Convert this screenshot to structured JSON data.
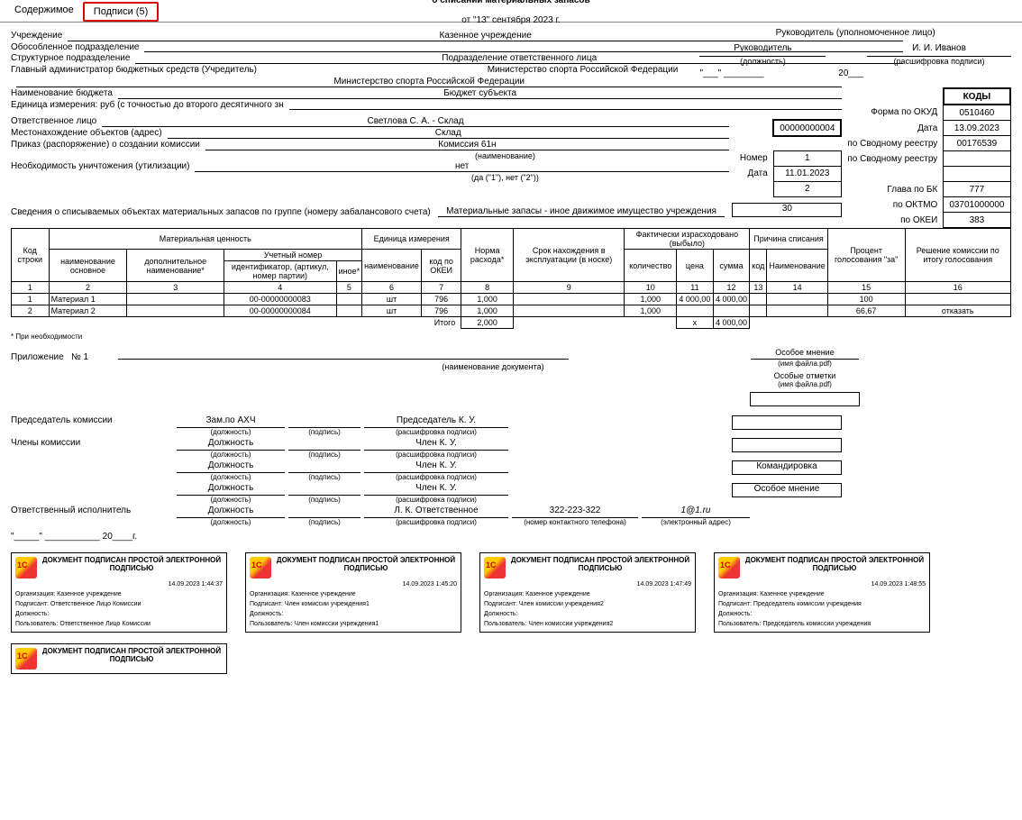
{
  "tabs": {
    "content": "Содержимое",
    "signatures": "Подписи (5)"
  },
  "header": {
    "lead": "Руководитель (уполномоченное лицо)",
    "position": "Руководитель",
    "position_sub": "(должность)",
    "name": "И. И. Иванов",
    "name_sub": "(расшифровка подписи)",
    "date_prefix": "\"___\"",
    "date_mid": "________",
    "date_year": "20___"
  },
  "act": {
    "title_prefix": "АКТ №",
    "number": "0000-000004",
    "subtitle": "о списании материальных запасов",
    "date_line": "от \"13\" сентября 2023 г."
  },
  "codes": {
    "header": "КОДЫ",
    "rows": [
      {
        "lbl": "Форма по ОКУД",
        "val": "0510460"
      },
      {
        "lbl": "Дата",
        "val": "13.09.2023"
      },
      {
        "lbl": "по Сводному реестру",
        "val": "00176539"
      },
      {
        "lbl": "по Сводному реестру",
        "val": ""
      },
      {
        "lbl": "",
        "val": ""
      },
      {
        "lbl": "Глава по БК",
        "val": "777"
      },
      {
        "lbl": "по ОКТМО",
        "val": "03701000000"
      },
      {
        "lbl": "по ОКЕИ",
        "val": "383"
      }
    ],
    "resp_code": "00000000004",
    "order_num_lbl": "Номер",
    "order_num": "1",
    "order_date_lbl": "Дата",
    "order_date": "11.01.2023",
    "destroy_code": "2",
    "group_code": "30"
  },
  "fields": {
    "org_lbl": "Учреждение",
    "org": "Казенное учреждение",
    "dep_lbl": "Обособленное подразделение",
    "dep": "",
    "struct_lbl": "Структурное подразделение",
    "struct": "Подразделение ответственного лица",
    "admin_lbl": "Главный администратор бюджетных средств (Учредитель)",
    "admin": "Министерство спорта Российской Федерации",
    "budget_lbl": "Наименование бюджета",
    "budget": "Бюджет субъекта",
    "unit_lbl": "Единица измерения: руб (с точностью до второго десятичного зн",
    "resp_lbl": "Ответственное лицо",
    "resp": "Светлова С. А. - Склад",
    "loc_lbl": "Местонахождение объектов (адрес)",
    "loc": "Склад",
    "order_lbl": "Приказ (распоряжение) о создании комиссии",
    "order": "Комиссия 61н",
    "order_sub": "(наименование)",
    "destroy_lbl": "Необходимость уничтожения (утилизации)",
    "destroy": "нет",
    "destroy_sub": "(да (\"1\"), нет (\"2\"))",
    "group_lbl": "Сведения о списываемых объектах материальных запасов по группе (номеру забалансового счета)",
    "group_val": "Материальные запасы - иное движимое имущество учреждения"
  },
  "table": {
    "h": {
      "kod": "Код строки",
      "mat": "Материальная ценность",
      "unit": "Единица  измерения",
      "norm": "Норма расхода*",
      "srok": "Срок нахождения в эксплуатации (в носке)",
      "fakt": "Фактически израсходовано (выбыло)",
      "reason": "Причина списания",
      "vote": "Процент голосования \"за\"",
      "decision": "Решение комиссии по итогу голосования",
      "name_main": "наименование основное",
      "name_add": "дополнительное наименование*",
      "acct": "Учетный номер",
      "acct_id": "идентификатор, (артикул, номер партии)",
      "acct_other": "иное*",
      "u_name": "наименование",
      "u_okei": "код по ОКЕИ",
      "qty": "количество",
      "price": "цена",
      "sum": "сумма",
      "code": "код",
      "rname": "Наименование"
    },
    "cols": [
      "1",
      "2",
      "3",
      "4",
      "5",
      "6",
      "7",
      "8",
      "9",
      "10",
      "11",
      "12",
      "13",
      "14",
      "15",
      "16"
    ],
    "rows": [
      {
        "n": "1",
        "name": "Материал 1",
        "id": "00-00000000083",
        "u": "шт",
        "okei": "796",
        "norm": "1,000",
        "qty": "1,000",
        "price": "4 000,00",
        "sum": "4 000,00",
        "vote": "100",
        "dec": ""
      },
      {
        "n": "2",
        "name": "Материал 2",
        "id": "00-00000000084",
        "u": "шт",
        "okei": "796",
        "norm": "1,000",
        "qty": "1,000",
        "price": "",
        "sum": "",
        "vote": "66,67",
        "dec": "отказать"
      }
    ],
    "total_lbl": "Итого",
    "total_qty": "2,000",
    "total_price": "х",
    "total_sum": "4 000,00",
    "footnote": "*  При необходимости"
  },
  "appendix": {
    "lbl": "Приложение",
    "num": "№ 1",
    "sub": "(наименование документа)",
    "special": "Особое мнение",
    "special_sub": "(имя файла.pdf)",
    "marks": "Особые отметки",
    "marks_sub": "(имя файла.pdf)"
  },
  "signs": {
    "chair_lbl": "Председатель комиссии",
    "members_lbl": "Члены комиссии",
    "exec_lbl": "Ответственный исполнитель",
    "pos_sub": "(должность)",
    "sign_sub": "(подпись)",
    "decr_sub": "(расшифровка подписи)",
    "phone_sub": "(номер контактного телефона)",
    "email_sub": "(электронный адрес)",
    "chair": {
      "pos": "Зам.по АХЧ",
      "name": "Председатель К. У."
    },
    "m1": {
      "pos": "Должность",
      "name": "Член К. У."
    },
    "m2": {
      "pos": "Должность",
      "name": "Член К. У.",
      "note": "Командировка"
    },
    "m3": {
      "pos": "Должность",
      "name": "Член К. У.",
      "note": "Особое мнение"
    },
    "exec": {
      "pos": "Должность",
      "name": "Л. К. Ответственное",
      "phone": "322-223-322",
      "email": "1@1.ru"
    },
    "date": "\"_____\" ___________ 20____г."
  },
  "stamps": [
    {
      "date": "14.09.2023 1:44:37",
      "org": "Казенное учреждение",
      "signer": "Ответственное Лицо Комиссии",
      "user": "Ответственное Лицо Комиссии"
    },
    {
      "date": "14.09.2023 1:45:20",
      "org": "Казенное учреждение",
      "signer": "Член комиссии учреждения1",
      "user": "Член комиссии учреждения1"
    },
    {
      "date": "14.09.2023 1:47:49",
      "org": "Казенное учреждение",
      "signer": "Член комиссии учреждения2",
      "user": "Член комиссии учреждения2"
    },
    {
      "date": "14.09.2023 1:48:55",
      "org": "Казенное учреждение",
      "signer": "Председатель комиссии учреждения",
      "user": "Председатель комиссии учреждения"
    }
  ],
  "stamp_title": "ДОКУМЕНТ ПОДПИСАН ПРОСТОЙ ЭЛЕКТРОННОЙ ПОДПИСЬЮ",
  "stamp_labels": {
    "org": "Организация:",
    "signer": "Подписант:",
    "pos": "Должность:",
    "user": "Пользователь:"
  }
}
